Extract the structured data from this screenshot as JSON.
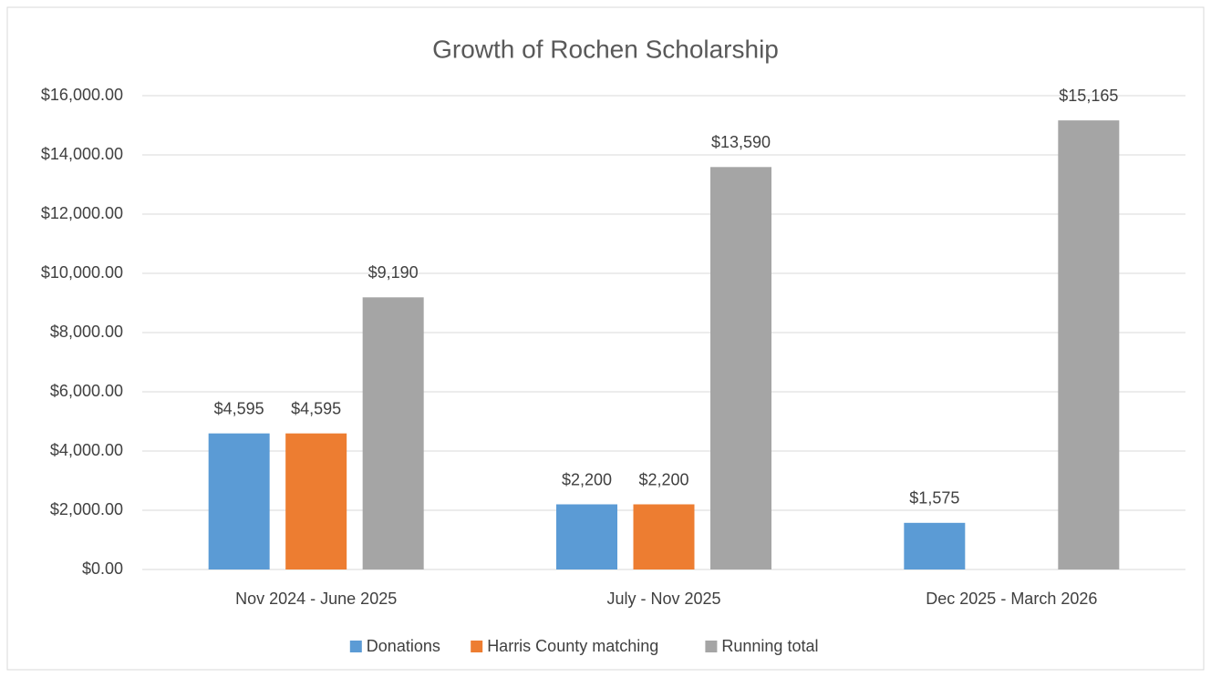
{
  "chart_data": {
    "type": "bar",
    "title": "Growth of Rochen Scholarship",
    "categories": [
      "Nov 2024 - June 2025",
      "July - Nov 2025",
      "Dec 2025 - March 2026"
    ],
    "series": [
      {
        "name": "Donations",
        "color": "#5b9bd5",
        "values": [
          4595,
          2200,
          1575
        ],
        "value_labels": [
          "$4,595",
          "$2,200",
          "$1,575"
        ]
      },
      {
        "name": "Harris County matching",
        "color": "#ed7d31",
        "values": [
          4595,
          2200,
          null
        ],
        "value_labels": [
          "$4,595",
          "$2,200",
          null
        ]
      },
      {
        "name": "Running total",
        "color": "#a5a5a5",
        "values": [
          9190,
          13590,
          15165
        ],
        "value_labels": [
          "$9,190",
          "$13,590",
          "$15,165"
        ]
      }
    ],
    "ylim": [
      0,
      16000
    ],
    "yticks": [
      {
        "value": 0,
        "label": "$0.00"
      },
      {
        "value": 2000,
        "label": "$2,000.00"
      },
      {
        "value": 4000,
        "label": "$4,000.00"
      },
      {
        "value": 6000,
        "label": "$6,000.00"
      },
      {
        "value": 8000,
        "label": "$8,000.00"
      },
      {
        "value": 10000,
        "label": "$10,000.00"
      },
      {
        "value": 12000,
        "label": "$12,000.00"
      },
      {
        "value": 14000,
        "label": "$14,000.00"
      },
      {
        "value": 16000,
        "label": "$16,000.00"
      }
    ],
    "grid": true,
    "legend": "bottom"
  }
}
